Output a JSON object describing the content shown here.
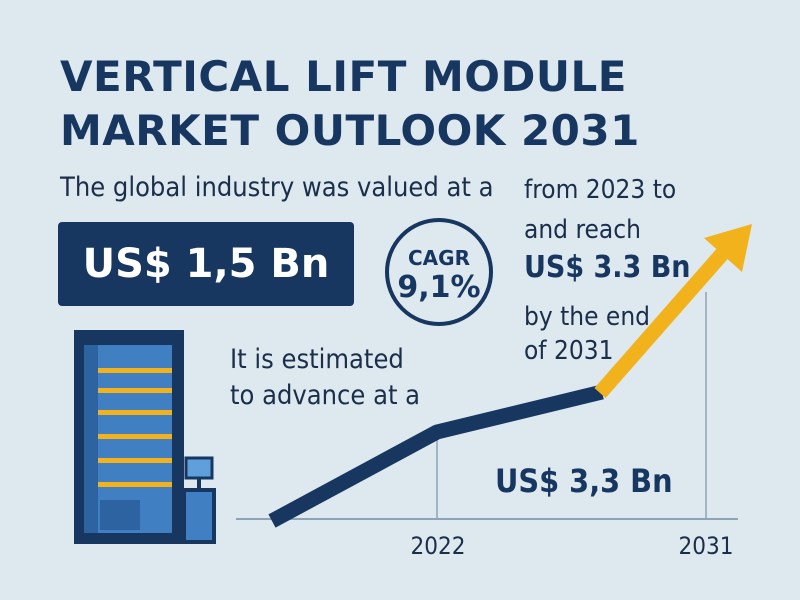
{
  "title_lines": [
    "VERTICAL LIFT MODULE",
    "MARKET OUTLOOK 2031"
  ],
  "intro_text": "The global industry was valued at a",
  "current_value": "US$ 1,5 Bn",
  "cagr": {
    "label": "CAGR",
    "value": "9,1%"
  },
  "estimate_lines": [
    "It is estimated",
    "to advance at a"
  ],
  "forecast": {
    "from_text": "from 2023 to",
    "reach_text": "and reach",
    "target_value": "US$ 3.3 Bn",
    "end_lines": [
      "by the end",
      "of 2031"
    ]
  },
  "bottom_value": "US$ 3,3 Bn",
  "colors": {
    "navy": "#173660",
    "accent": "#f2b21b",
    "background": "#dde8ef"
  },
  "icons": [
    "vertical-lift-module-icon",
    "arrow-up-icon"
  ],
  "chart_data": {
    "type": "line",
    "x_ticks": [
      "2022",
      "2031"
    ],
    "series": [
      {
        "values": [
          1.5,
          3.3
        ]
      }
    ],
    "grid": false
  }
}
